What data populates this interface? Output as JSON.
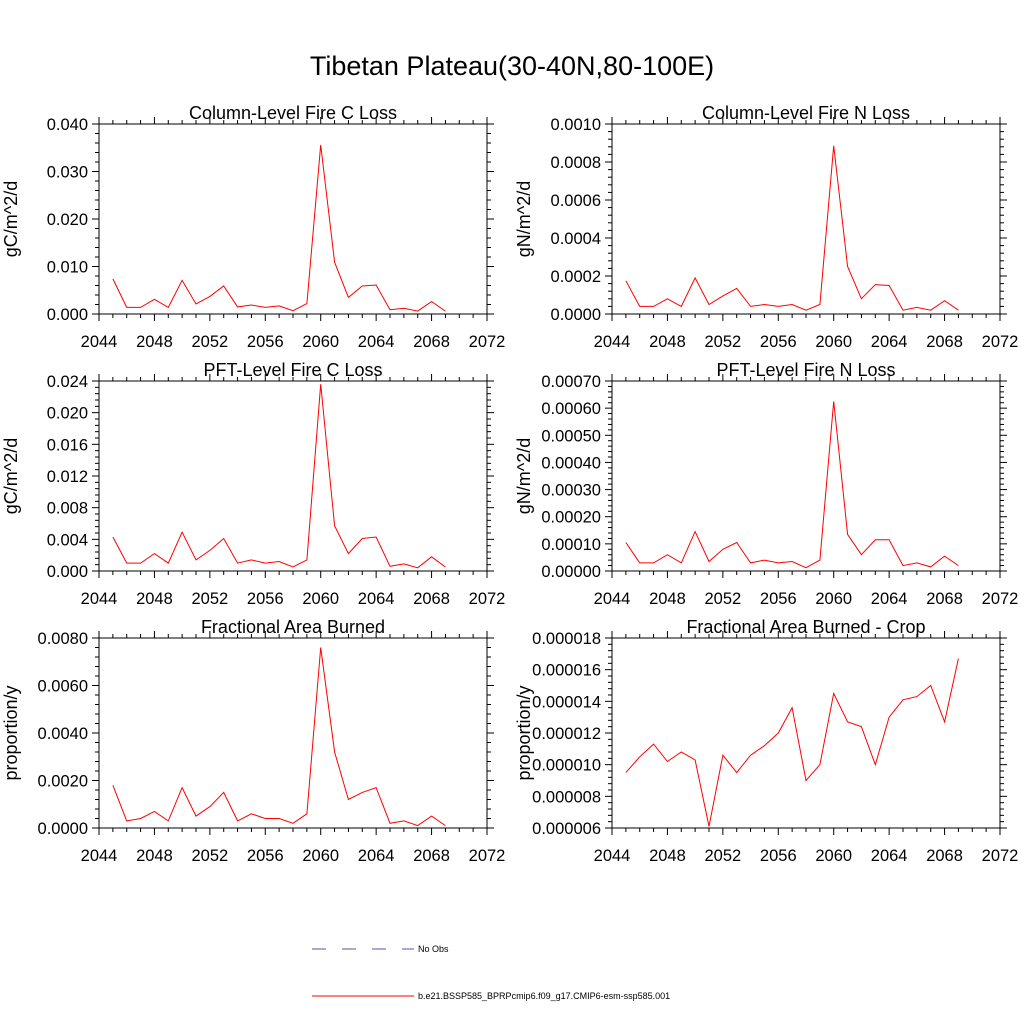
{
  "suptitle": "Tibetan Plateau(30-40N,80-100E)",
  "legend": {
    "entries": [
      {
        "label": "No Obs",
        "color": "#5555aa",
        "dash": true
      },
      {
        "label": "b.e21.BSSP585_BPRPcmip6.f09_g17.CMIP6-esm-ssp585.001",
        "color": "#ff0000",
        "dash": false
      }
    ]
  },
  "chart_data": [
    {
      "type": "line",
      "title": "Column-Level Fire C Loss",
      "ylabel": "gC/m^2/d",
      "xlim": [
        2044,
        2072
      ],
      "ylim": [
        0,
        0.04
      ],
      "xticks": [
        "2044",
        "2048",
        "2052",
        "2056",
        "2060",
        "2064",
        "2068",
        "2072"
      ],
      "yticks": [
        "0.000",
        "0.010",
        "0.020",
        "0.030",
        "0.040"
      ],
      "series": [
        {
          "color": "#ff0000",
          "x": [
            2045,
            2046,
            2047,
            2048,
            2049,
            2050,
            2051,
            2052,
            2053,
            2054,
            2055,
            2056,
            2057,
            2058,
            2059,
            2060,
            2061,
            2062,
            2063,
            2064,
            2065,
            2066,
            2067,
            2068,
            2069
          ],
          "y": [
            0.0074,
            0.0014,
            0.0014,
            0.0031,
            0.0014,
            0.0071,
            0.0021,
            0.0037,
            0.0059,
            0.0015,
            0.0019,
            0.0014,
            0.0017,
            0.0007,
            0.0022,
            0.0356,
            0.0109,
            0.0035,
            0.0059,
            0.0061,
            0.0009,
            0.0012,
            0.0006,
            0.0026,
            0.0006
          ]
        }
      ]
    },
    {
      "type": "line",
      "title": "Column-Level Fire N Loss",
      "ylabel": "gN/m^2/d",
      "xlim": [
        2044,
        2072
      ],
      "ylim": [
        0,
        0.001
      ],
      "xticks": [
        "2044",
        "2048",
        "2052",
        "2056",
        "2060",
        "2064",
        "2068",
        "2072"
      ],
      "yticks": [
        "0.0000",
        "0.0002",
        "0.0004",
        "0.0006",
        "0.0008",
        "0.0010"
      ],
      "series": [
        {
          "color": "#ff0000",
          "x": [
            2045,
            2046,
            2047,
            2048,
            2049,
            2050,
            2051,
            2052,
            2053,
            2054,
            2055,
            2056,
            2057,
            2058,
            2059,
            2060,
            2061,
            2062,
            2063,
            2064,
            2065,
            2066,
            2067,
            2068,
            2069
          ],
          "y": [
            0.000175,
            4e-05,
            4e-05,
            8e-05,
            4e-05,
            0.00019,
            5e-05,
            9.5e-05,
            0.000135,
            4e-05,
            5e-05,
            4e-05,
            5e-05,
            2e-05,
            5e-05,
            0.000885,
            0.00025,
            8e-05,
            0.000155,
            0.00015,
            2e-05,
            3.5e-05,
            2e-05,
            7e-05,
            2e-05
          ]
        }
      ]
    },
    {
      "type": "line",
      "title": "PFT-Level Fire C Loss",
      "ylabel": "gC/m^2/d",
      "xlim": [
        2044,
        2072
      ],
      "ylim": [
        0,
        0.024
      ],
      "xticks": [
        "2044",
        "2048",
        "2052",
        "2056",
        "2060",
        "2064",
        "2068",
        "2072"
      ],
      "yticks": [
        "0.000",
        "0.004",
        "0.008",
        "0.012",
        "0.016",
        "0.020",
        "0.024"
      ],
      "series": [
        {
          "color": "#ff0000",
          "x": [
            2045,
            2046,
            2047,
            2048,
            2049,
            2050,
            2051,
            2052,
            2053,
            2054,
            2055,
            2056,
            2057,
            2058,
            2059,
            2060,
            2061,
            2062,
            2063,
            2064,
            2065,
            2066,
            2067,
            2068,
            2069
          ],
          "y": [
            0.0043,
            0.001,
            0.001,
            0.0022,
            0.001,
            0.0049,
            0.0014,
            0.0026,
            0.0041,
            0.001,
            0.0014,
            0.001,
            0.0012,
            0.0005,
            0.0014,
            0.0236,
            0.0057,
            0.0022,
            0.0041,
            0.0043,
            0.0006,
            0.0009,
            0.0004,
            0.0018,
            0.0005
          ]
        }
      ]
    },
    {
      "type": "line",
      "title": "PFT-Level Fire N Loss",
      "ylabel": "gN/m^2/d",
      "xlim": [
        2044,
        2072
      ],
      "ylim": [
        0,
        0.0007
      ],
      "xticks": [
        "2044",
        "2048",
        "2052",
        "2056",
        "2060",
        "2064",
        "2068",
        "2072"
      ],
      "yticks": [
        "0.00000",
        "0.00010",
        "0.00020",
        "0.00030",
        "0.00040",
        "0.00050",
        "0.00060",
        "0.00070"
      ],
      "series": [
        {
          "color": "#ff0000",
          "x": [
            2045,
            2046,
            2047,
            2048,
            2049,
            2050,
            2051,
            2052,
            2053,
            2054,
            2055,
            2056,
            2057,
            2058,
            2059,
            2060,
            2061,
            2062,
            2063,
            2064,
            2065,
            2066,
            2067,
            2068,
            2069
          ],
          "y": [
            0.000105,
            3e-05,
            3e-05,
            6e-05,
            3e-05,
            0.000145,
            3.5e-05,
            8e-05,
            0.000105,
            3e-05,
            4e-05,
            3e-05,
            3.5e-05,
            1.2e-05,
            4e-05,
            0.000625,
            0.000135,
            6e-05,
            0.000115,
            0.000115,
            2e-05,
            3e-05,
            1.5e-05,
            5.5e-05,
            2e-05
          ]
        }
      ]
    },
    {
      "type": "line",
      "title": "Fractional Area Burned",
      "ylabel": "proportion/y",
      "xlim": [
        2044,
        2072
      ],
      "ylim": [
        0,
        0.008
      ],
      "xticks": [
        "2044",
        "2048",
        "2052",
        "2056",
        "2060",
        "2064",
        "2068",
        "2072"
      ],
      "yticks": [
        "0.0000",
        "0.0020",
        "0.0040",
        "0.0060",
        "0.0080"
      ],
      "series": [
        {
          "color": "#ff0000",
          "x": [
            2045,
            2046,
            2047,
            2048,
            2049,
            2050,
            2051,
            2052,
            2053,
            2054,
            2055,
            2056,
            2057,
            2058,
            2059,
            2060,
            2061,
            2062,
            2063,
            2064,
            2065,
            2066,
            2067,
            2068,
            2069
          ],
          "y": [
            0.0018,
            0.0003,
            0.0004,
            0.0007,
            0.0003,
            0.0017,
            0.0005,
            0.0009,
            0.0015,
            0.0003,
            0.0006,
            0.0004,
            0.0004,
            0.0002,
            0.0006,
            0.0076,
            0.0032,
            0.0012,
            0.0015,
            0.0017,
            0.0002,
            0.0003,
            0.0001,
            0.0005,
            0.0001
          ]
        }
      ]
    },
    {
      "type": "line",
      "title": "Fractional Area Burned - Crop",
      "ylabel": "proportion/y",
      "xlim": [
        2044,
        2072
      ],
      "ylim": [
        6e-06,
        1.8e-05
      ],
      "xticks": [
        "2044",
        "2048",
        "2052",
        "2056",
        "2060",
        "2064",
        "2068",
        "2072"
      ],
      "yticks": [
        "0.000006",
        "0.000008",
        "0.000010",
        "0.000012",
        "0.000014",
        "0.000016",
        "0.000018"
      ],
      "series": [
        {
          "color": "#ff0000",
          "x": [
            2045,
            2046,
            2047,
            2048,
            2049,
            2050,
            2051,
            2052,
            2053,
            2054,
            2055,
            2056,
            2057,
            2058,
            2059,
            2060,
            2061,
            2062,
            2063,
            2064,
            2065,
            2066,
            2067,
            2068,
            2069
          ],
          "y": [
            9.5e-06,
            1.05e-05,
            1.13e-05,
            1.02e-05,
            1.08e-05,
            1.03e-05,
            6.1e-06,
            1.06e-05,
            9.5e-06,
            1.06e-05,
            1.12e-05,
            1.2e-05,
            1.36e-05,
            9e-06,
            1e-05,
            1.45e-05,
            1.27e-05,
            1.24e-05,
            1e-05,
            1.3e-05,
            1.41e-05,
            1.43e-05,
            1.5e-05,
            1.27e-05,
            1.67e-05
          ]
        }
      ]
    }
  ]
}
